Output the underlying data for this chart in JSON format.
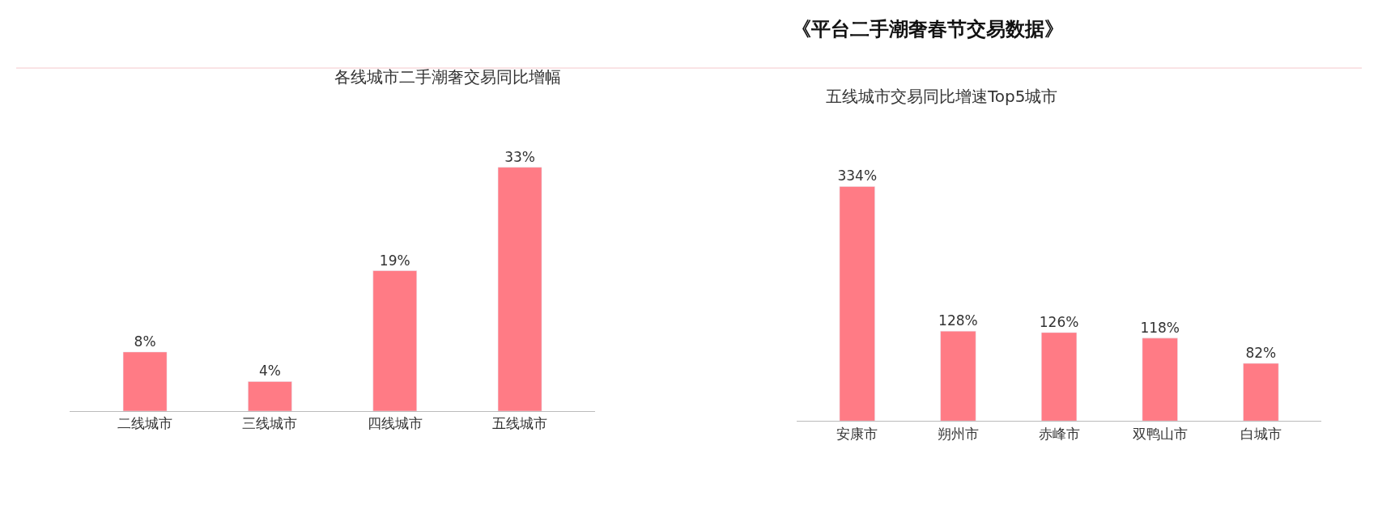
{
  "chart_data": [
    {
      "type": "bar",
      "title": "各线城市二手潮奢交易同比增幅",
      "annotations": [
        "《平台二手潮奢春节交易数据》"
      ],
      "categories": [
        "二线城市",
        "三线城市",
        "四线城市",
        "五线城市"
      ],
      "values": [
        8,
        4,
        19,
        33
      ],
      "value_labels": [
        "8%",
        "4%",
        "19%",
        "33%"
      ],
      "color": "#ff7b85",
      "tick_labels": "x"
    },
    {
      "type": "bar",
      "title": "五线城市交易同比增速Top5城市",
      "categories": [
        "安康市",
        "朔州市",
        "赤峰市",
        "双鸭山市",
        "白城市"
      ],
      "values": [
        334,
        128,
        126,
        118,
        82
      ],
      "value_labels": [
        "334%",
        "128%",
        "126%",
        "118%",
        "82%"
      ],
      "color": "#ff7b85",
      "tick_labels": "x"
    }
  ]
}
